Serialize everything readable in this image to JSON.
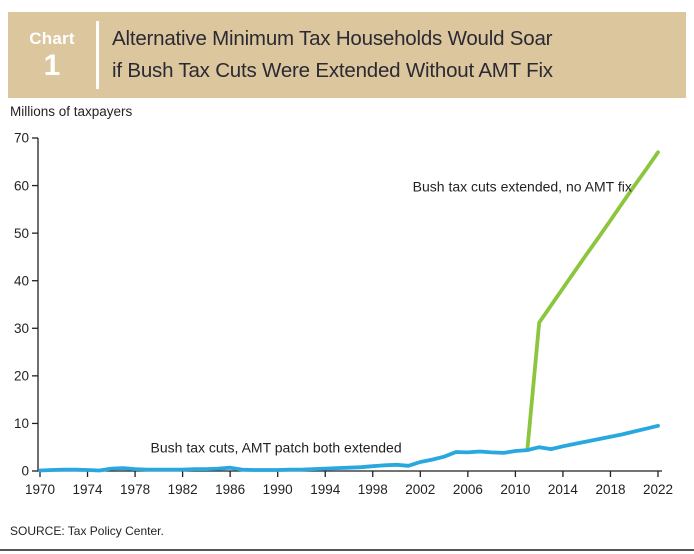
{
  "header": {
    "kicker_label": "Chart",
    "kicker_number": "1",
    "title_line1": "Alternative Minimum Tax Households Would Soar",
    "title_line2": "if Bush Tax Cuts Were Extended Without AMT Fix"
  },
  "labels": {
    "unit": "Millions of taxpayers",
    "source": "SOURCE: Tax Policy Center."
  },
  "colors": {
    "band": "#dbc69e",
    "title_text": "#2b2a33",
    "axis": "#231f20",
    "green_series": "#8cc63f",
    "blue_series": "#29a8df"
  },
  "chart_data": {
    "type": "line",
    "title": "Alternative Minimum Tax Households Would Soar if Bush Tax Cuts Were Extended Without AMT Fix",
    "xlabel": "",
    "ylabel": "Millions of taxpayers",
    "xlim": [
      1970,
      2022
    ],
    "ylim": [
      0,
      70
    ],
    "x_ticks": [
      1970,
      1974,
      1978,
      1982,
      1986,
      1990,
      1994,
      1998,
      2002,
      2006,
      2010,
      2014,
      2018,
      2022
    ],
    "y_ticks": [
      0,
      10,
      20,
      30,
      40,
      50,
      60,
      70
    ],
    "grid": false,
    "legend": "inline-annotations",
    "series": [
      {
        "name": "Bush tax cuts extended, no AMT fix",
        "color": "#8cc63f",
        "points": [
          [
            2011,
            4.4
          ],
          [
            2012,
            31.2
          ],
          [
            2013,
            34.8
          ],
          [
            2014,
            38.4
          ],
          [
            2015,
            42.0
          ],
          [
            2016,
            45.6
          ],
          [
            2017,
            49.1
          ],
          [
            2018,
            52.7
          ],
          [
            2019,
            56.3
          ],
          [
            2020,
            59.9
          ],
          [
            2021,
            63.4
          ],
          [
            2022,
            67.0
          ]
        ]
      },
      {
        "name": "Bush tax cuts, AMT patch both extended",
        "color": "#29a8df",
        "points": [
          [
            1970,
            0.1
          ],
          [
            1971,
            0.2
          ],
          [
            1972,
            0.3
          ],
          [
            1973,
            0.3
          ],
          [
            1974,
            0.2
          ],
          [
            1975,
            0.1
          ],
          [
            1976,
            0.5
          ],
          [
            1977,
            0.6
          ],
          [
            1978,
            0.4
          ],
          [
            1979,
            0.3
          ],
          [
            1980,
            0.3
          ],
          [
            1981,
            0.3
          ],
          [
            1982,
            0.3
          ],
          [
            1983,
            0.4
          ],
          [
            1984,
            0.4
          ],
          [
            1985,
            0.5
          ],
          [
            1986,
            0.7
          ],
          [
            1987,
            0.3
          ],
          [
            1988,
            0.2
          ],
          [
            1989,
            0.2
          ],
          [
            1990,
            0.2
          ],
          [
            1991,
            0.3
          ],
          [
            1992,
            0.3
          ],
          [
            1993,
            0.4
          ],
          [
            1994,
            0.5
          ],
          [
            1995,
            0.6
          ],
          [
            1996,
            0.7
          ],
          [
            1997,
            0.8
          ],
          [
            1998,
            1.0
          ],
          [
            1999,
            1.2
          ],
          [
            2000,
            1.3
          ],
          [
            2001,
            1.1
          ],
          [
            2002,
            1.9
          ],
          [
            2003,
            2.4
          ],
          [
            2004,
            3.0
          ],
          [
            2005,
            4.0
          ],
          [
            2006,
            3.9
          ],
          [
            2007,
            4.1
          ],
          [
            2008,
            3.9
          ],
          [
            2009,
            3.8
          ],
          [
            2010,
            4.2
          ],
          [
            2011,
            4.4
          ],
          [
            2012,
            5.0
          ],
          [
            2013,
            4.6
          ],
          [
            2014,
            5.2
          ],
          [
            2015,
            5.7
          ],
          [
            2016,
            6.2
          ],
          [
            2017,
            6.7
          ],
          [
            2018,
            7.2
          ],
          [
            2019,
            7.7
          ],
          [
            2020,
            8.3
          ],
          [
            2021,
            8.9
          ],
          [
            2022,
            9.5
          ]
        ]
      }
    ],
    "annotations": [
      {
        "text": "Bush tax cuts extended, no AMT fix",
        "anchor": "end",
        "x_year": 2019.8,
        "y_value": 58.8
      },
      {
        "text": "Bush tax cuts, AMT patch both extended",
        "anchor": "start",
        "x_year": 1979.3,
        "y_value": 3.9
      }
    ]
  }
}
